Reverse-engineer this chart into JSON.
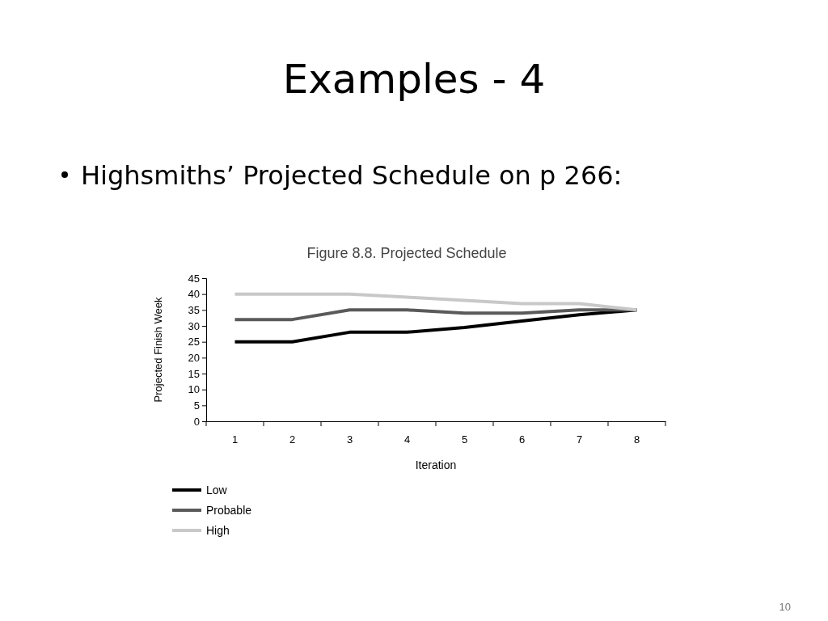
{
  "chart_data": {
    "type": "line",
    "title": "Examples - 4",
    "subtitle": "Highsmiths’ Projected Schedule on p 266:",
    "annotations": [
      "Figure 8.8. Projected Schedule",
      "10"
    ],
    "xlabel": "Iteration",
    "ylabel": "Projected Finish Week",
    "categories": [
      "1",
      "2",
      "3",
      "4",
      "5",
      "6",
      "7",
      "8"
    ],
    "ylim": [
      0,
      45
    ],
    "yticks": [
      0,
      5,
      10,
      15,
      20,
      25,
      30,
      35,
      40,
      45
    ],
    "series": [
      {
        "name": "Low",
        "color": "#000000",
        "values": [
          25,
          25,
          28,
          28,
          29.5,
          31.5,
          33.5,
          35
        ]
      },
      {
        "name": "Probable",
        "color": "#5a5a5a",
        "values": [
          32,
          32,
          35,
          35,
          34,
          34,
          35,
          35
        ]
      },
      {
        "name": "High",
        "color": "#c8c8c8",
        "values": [
          40,
          40,
          40,
          39,
          38,
          37,
          37,
          35
        ]
      }
    ],
    "legend": "bottom left",
    "grid": false,
    "marker": "none",
    "line_style": "solid"
  }
}
